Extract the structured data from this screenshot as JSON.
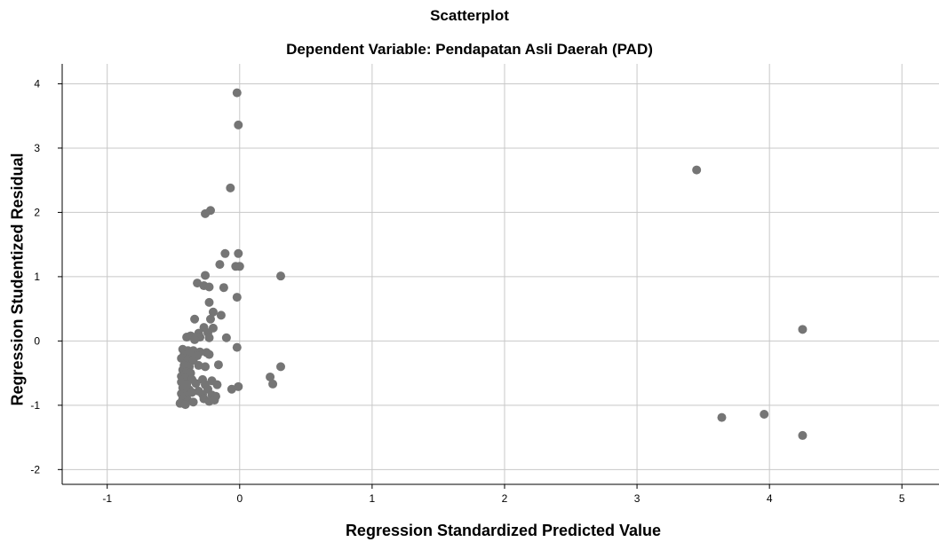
{
  "chart_data": {
    "type": "scatter",
    "title": "Scatterplot",
    "subtitle": "Dependent Variable: Pendapatan Asli Daerah (PAD)",
    "xlabel": "Regression Standardized Predicted Value",
    "ylabel": "Regression Studentized Residual",
    "xlim": [
      -1.34,
      5.28
    ],
    "ylim": [
      -2.23,
      4.31
    ],
    "xticks": [
      -1,
      0,
      1,
      2,
      3,
      4,
      5
    ],
    "yticks": [
      -2,
      -1,
      0,
      1,
      2,
      3,
      4
    ],
    "grid": true,
    "point_color": "#757575",
    "points": [
      [
        -0.02,
        3.86
      ],
      [
        -0.01,
        3.36
      ],
      [
        -0.07,
        2.38
      ],
      [
        -0.22,
        2.03
      ],
      [
        -0.26,
        1.98
      ],
      [
        3.45,
        2.66
      ],
      [
        4.25,
        0.18
      ],
      [
        3.64,
        -1.19
      ],
      [
        3.96,
        -1.14
      ],
      [
        4.25,
        -1.47
      ],
      [
        -0.11,
        1.36
      ],
      [
        -0.01,
        1.36
      ],
      [
        -0.15,
        1.19
      ],
      [
        -0.03,
        1.16
      ],
      [
        0.0,
        1.16
      ],
      [
        0.31,
        1.01
      ],
      [
        -0.26,
        1.02
      ],
      [
        -0.32,
        0.9
      ],
      [
        -0.27,
        0.86
      ],
      [
        -0.23,
        0.84
      ],
      [
        -0.12,
        0.83
      ],
      [
        -0.02,
        0.68
      ],
      [
        -0.23,
        0.6
      ],
      [
        -0.2,
        0.45
      ],
      [
        -0.14,
        0.4
      ],
      [
        -0.34,
        0.34
      ],
      [
        -0.22,
        0.34
      ],
      [
        -0.2,
        0.2
      ],
      [
        -0.27,
        0.21
      ],
      [
        -0.24,
        0.13
      ],
      [
        -0.31,
        0.12
      ],
      [
        -0.37,
        0.08
      ],
      [
        -0.4,
        0.06
      ],
      [
        -0.3,
        0.06
      ],
      [
        -0.23,
        0.05
      ],
      [
        -0.1,
        0.05
      ],
      [
        -0.34,
        0.02
      ],
      [
        -0.02,
        -0.1
      ],
      [
        -0.43,
        -0.13
      ],
      [
        -0.39,
        -0.15
      ],
      [
        -0.35,
        -0.15
      ],
      [
        -0.3,
        -0.17
      ],
      [
        -0.25,
        -0.18
      ],
      [
        -0.42,
        -0.22
      ],
      [
        -0.37,
        -0.21
      ],
      [
        -0.32,
        -0.23
      ],
      [
        -0.23,
        -0.21
      ],
      [
        -0.44,
        -0.27
      ],
      [
        -0.39,
        -0.29
      ],
      [
        -0.35,
        -0.3
      ],
      [
        -0.42,
        -0.38
      ],
      [
        -0.38,
        -0.4
      ],
      [
        -0.31,
        -0.38
      ],
      [
        -0.26,
        -0.4
      ],
      [
        -0.16,
        -0.37
      ],
      [
        0.31,
        -0.4
      ],
      [
        -0.43,
        -0.45
      ],
      [
        -0.4,
        -0.48
      ],
      [
        -0.37,
        -0.5
      ],
      [
        -0.44,
        -0.55
      ],
      [
        -0.41,
        -0.58
      ],
      [
        -0.36,
        -0.6
      ],
      [
        -0.28,
        -0.6
      ],
      [
        -0.21,
        -0.62
      ],
      [
        0.23,
        -0.56
      ],
      [
        -0.44,
        -0.64
      ],
      [
        -0.4,
        -0.68
      ],
      [
        -0.33,
        -0.66
      ],
      [
        -0.26,
        -0.68
      ],
      [
        -0.17,
        -0.68
      ],
      [
        0.25,
        -0.67
      ],
      [
        -0.43,
        -0.73
      ],
      [
        -0.38,
        -0.76
      ],
      [
        -0.31,
        -0.78
      ],
      [
        -0.24,
        -0.75
      ],
      [
        -0.06,
        -0.75
      ],
      [
        -0.01,
        -0.71
      ],
      [
        -0.44,
        -0.82
      ],
      [
        -0.4,
        -0.85
      ],
      [
        -0.36,
        -0.8
      ],
      [
        -0.28,
        -0.83
      ],
      [
        -0.21,
        -0.84
      ],
      [
        -0.18,
        -0.86
      ],
      [
        -0.43,
        -0.9
      ],
      [
        -0.39,
        -0.93
      ],
      [
        -0.35,
        -0.95
      ],
      [
        -0.27,
        -0.9
      ],
      [
        -0.23,
        -0.94
      ],
      [
        -0.19,
        -0.92
      ],
      [
        -0.45,
        -0.97
      ],
      [
        -0.41,
        -0.99
      ]
    ]
  }
}
